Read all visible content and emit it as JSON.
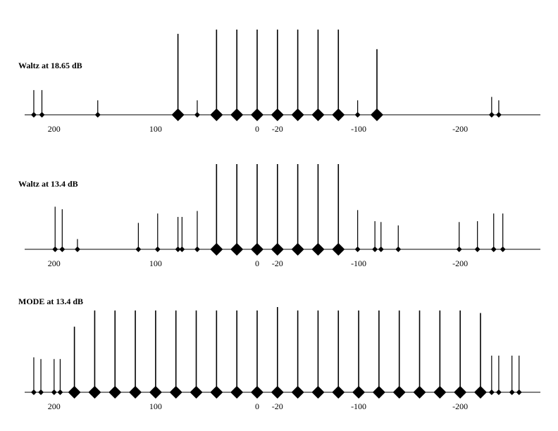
{
  "chart_data": [
    {
      "type": "spectrum",
      "title": "Waltz at 18.65 dB",
      "x": [
        220,
        212,
        157,
        78,
        59,
        40,
        20,
        0,
        -20,
        -40,
        -60,
        -80,
        -99,
        -118,
        -231,
        -238
      ],
      "values": [
        29,
        29,
        17,
        95,
        17,
        100,
        100,
        100,
        100,
        100,
        100,
        100,
        17,
        77,
        21,
        17
      ],
      "xlim": [
        229,
        -279
      ],
      "ylim": [
        0,
        100
      ],
      "xticks": [
        200,
        100,
        0,
        -20,
        -100,
        -200
      ],
      "color": "#000000"
    },
    {
      "type": "spectrum",
      "title": "Waltz at 13.4 dB",
      "x": [
        199,
        192,
        177,
        117,
        98,
        78,
        74,
        59,
        40,
        20,
        0,
        -20,
        -40,
        -60,
        -80,
        -99,
        -116,
        -122,
        -139,
        -199,
        -217,
        -233,
        -242
      ],
      "values": [
        50,
        47,
        12,
        31,
        42,
        38,
        38,
        45,
        100,
        100,
        100,
        100,
        100,
        100,
        100,
        46,
        33,
        32,
        28,
        32,
        33,
        42,
        42
      ],
      "xlim": [
        229,
        -279
      ],
      "ylim": [
        0,
        100
      ],
      "xticks": [
        200,
        100,
        0,
        -20,
        -100,
        -200
      ],
      "color": "#000000"
    },
    {
      "type": "spectrum",
      "title": "MODE at 13.4 dB",
      "x": [
        220,
        213,
        200,
        194,
        180,
        160,
        140,
        120,
        100,
        80,
        60,
        40,
        20,
        0,
        -20,
        -40,
        -60,
        -80,
        -100,
        -120,
        -140,
        -160,
        -180,
        -200,
        -220,
        -231,
        -238,
        -251,
        -258
      ],
      "values": [
        41,
        39,
        39,
        39,
        77,
        96,
        96,
        96,
        96,
        96,
        96,
        96,
        96,
        96,
        100,
        96,
        96,
        96,
        96,
        96,
        96,
        96,
        96,
        96,
        93,
        43,
        43,
        43,
        43
      ],
      "xlim": [
        229,
        -279
      ],
      "ylim": [
        0,
        100
      ],
      "xticks": [
        200,
        100,
        0,
        -20,
        -100,
        -200
      ],
      "color": "#000000"
    }
  ]
}
